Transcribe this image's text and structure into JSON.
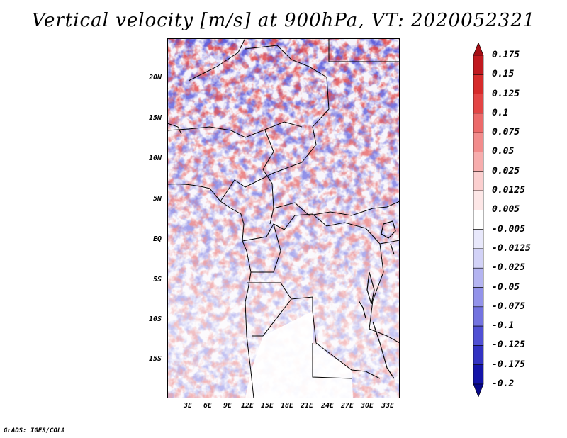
{
  "title": "Vertical velocity [m/s] at 900hPa, VT: 2020052321",
  "credit": "GrADS: IGES/COLA",
  "map": {
    "variable": "Vertical velocity",
    "units": "m/s",
    "level": "900hPa",
    "valid_time": "2020052321",
    "lat_ticks": [
      "20N",
      "15N",
      "10N",
      "5N",
      "EQ",
      "5S",
      "10S",
      "15S"
    ],
    "lon_ticks": [
      "3E",
      "6E",
      "9E",
      "12E",
      "15E",
      "18E",
      "21E",
      "24E",
      "27E",
      "30E",
      "33E"
    ]
  },
  "colorbar": {
    "labels": [
      "0.175",
      "0.15",
      "0.125",
      "0.1",
      "0.075",
      "0.05",
      "0.025",
      "0.0125",
      "0.005",
      "-0.005",
      "-0.0125",
      "-0.025",
      "-0.05",
      "-0.075",
      "-0.1",
      "-0.125",
      "-0.175",
      "-0.2"
    ],
    "colors": [
      "#a50f15",
      "#c0191f",
      "#d62b2b",
      "#e34545",
      "#ec6a6a",
      "#f28c8c",
      "#f7adad",
      "#fbcfcf",
      "#fde7e7",
      "#ffffff",
      "#e8e8fb",
      "#d2d2f7",
      "#b4b4f1",
      "#9393ea",
      "#7373e0",
      "#5050d4",
      "#3232c2",
      "#1414a8",
      "#08088a"
    ]
  }
}
